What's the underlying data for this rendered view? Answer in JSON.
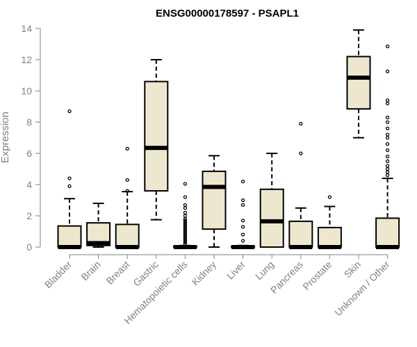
{
  "chart_data": {
    "type": "boxplot",
    "title": "ENSG00000178597 - PSAPL1",
    "xlabel": "",
    "ylabel": "Expression",
    "ylim": [
      0,
      14
    ],
    "yticks": [
      0,
      2,
      4,
      6,
      8,
      10,
      12,
      14
    ],
    "colors": {
      "box_fill": "#ede7cf",
      "stroke": "#000000",
      "axis": "#808080"
    },
    "categories": [
      "Bladder",
      "Brain",
      "Breast",
      "Gastric",
      "Hematopoietic cells",
      "Kidney",
      "Liver",
      "Lung",
      "Pancreas",
      "Prostate",
      "Skin",
      "Unknown / Other"
    ],
    "boxes": [
      {
        "label": "Bladder",
        "min": 0,
        "q1": 0,
        "median": 0,
        "q3": 1.35,
        "max": 3.1,
        "outliers": [
          3.9,
          4.4,
          8.7
        ]
      },
      {
        "label": "Brain",
        "min": 0,
        "q1": 0.1,
        "median": 0.25,
        "q3": 1.55,
        "max": 2.8,
        "outliers": []
      },
      {
        "label": "Breast",
        "min": 0,
        "q1": 0,
        "median": 0,
        "q3": 1.45,
        "max": 3.55,
        "outliers": [
          3.6,
          4.3,
          6.3
        ]
      },
      {
        "label": "Gastric",
        "min": 1.75,
        "q1": 3.6,
        "median": 6.35,
        "q3": 10.6,
        "max": 12.0,
        "outliers": []
      },
      {
        "label": "Hematopoietic cells",
        "min": 0,
        "q1": 0,
        "median": 0,
        "q3": 0.05,
        "max": 0.1,
        "outliers": [
          0.2,
          0.3,
          0.4,
          0.5,
          0.6,
          0.7,
          0.8,
          0.9,
          1.0,
          1.1,
          1.2,
          1.3,
          1.4,
          1.5,
          1.6,
          1.7,
          1.8,
          2.0,
          2.2,
          2.5,
          2.7,
          3.2,
          4.05
        ]
      },
      {
        "label": "Kidney",
        "min": 0,
        "q1": 1.15,
        "median": 3.85,
        "q3": 4.85,
        "max": 5.85,
        "outliers": []
      },
      {
        "label": "Liver",
        "min": 0,
        "q1": 0,
        "median": 0,
        "q3": 0.05,
        "max": 0.1,
        "outliers": [
          0.4,
          0.8,
          1.3,
          1.7,
          2.7,
          3.0,
          4.2
        ]
      },
      {
        "label": "Lung",
        "min": 0,
        "q1": 0,
        "median": 1.65,
        "q3": 3.7,
        "max": 6.0,
        "outliers": []
      },
      {
        "label": "Pancreas",
        "min": 0,
        "q1": 0,
        "median": 0,
        "q3": 1.65,
        "max": 2.5,
        "outliers": [
          6.0,
          7.9
        ]
      },
      {
        "label": "Prostate",
        "min": 0,
        "q1": 0,
        "median": 0,
        "q3": 1.25,
        "max": 2.6,
        "outliers": [
          3.2
        ]
      },
      {
        "label": "Skin",
        "min": 7.0,
        "q1": 8.85,
        "median": 10.85,
        "q3": 12.2,
        "max": 13.9,
        "outliers": []
      },
      {
        "label": "Unknown / Other",
        "min": 0,
        "q1": 0,
        "median": 0,
        "q3": 1.85,
        "max": 4.4,
        "outliers": [
          4.6,
          4.8,
          5.0,
          5.2,
          5.5,
          5.8,
          6.2,
          6.6,
          7.0,
          7.2,
          7.6,
          8.0,
          8.3,
          9.2,
          9.4,
          11.25,
          12.85
        ]
      }
    ]
  }
}
